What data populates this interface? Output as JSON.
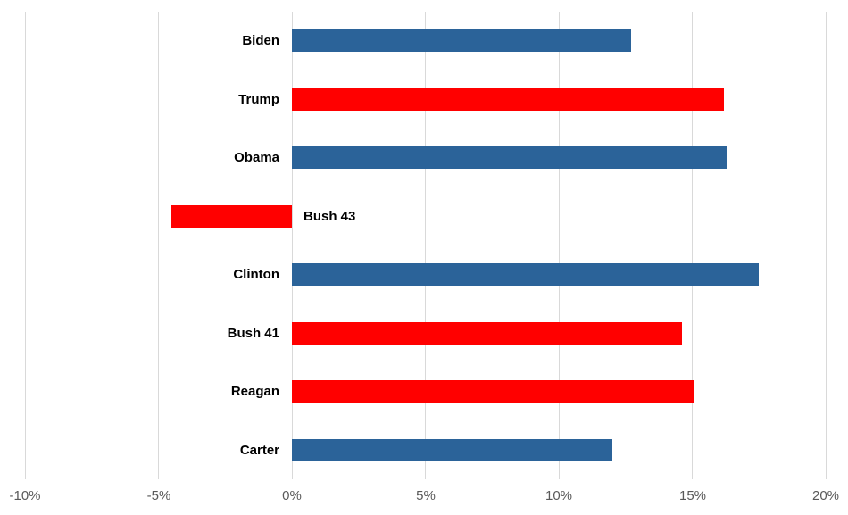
{
  "chart_data": {
    "type": "bar",
    "orientation": "horizontal",
    "categories": [
      "Biden",
      "Trump",
      "Obama",
      "Bush 43",
      "Clinton",
      "Bush 41",
      "Reagan",
      "Carter"
    ],
    "values": [
      12.7,
      16.2,
      16.3,
      -4.5,
      17.5,
      14.6,
      15.1,
      12.0
    ],
    "parties": [
      "D",
      "R",
      "D",
      "R",
      "D",
      "R",
      "R",
      "D"
    ],
    "series_colors": {
      "D": "#2B6399",
      "R": "#FF0000"
    },
    "xlim": [
      -10,
      20
    ],
    "x_ticks": [
      -10,
      -5,
      0,
      5,
      10,
      15,
      20
    ],
    "x_tick_labels": [
      "-10%",
      "-5%",
      "0%",
      "5%",
      "10%",
      "15%",
      "20%"
    ],
    "grid": true,
    "legend": false,
    "gridline_color": "#D9D9D9",
    "tick_label_color": "#595959",
    "category_label_color": "#000000",
    "background_color": "#FFFFFF"
  }
}
